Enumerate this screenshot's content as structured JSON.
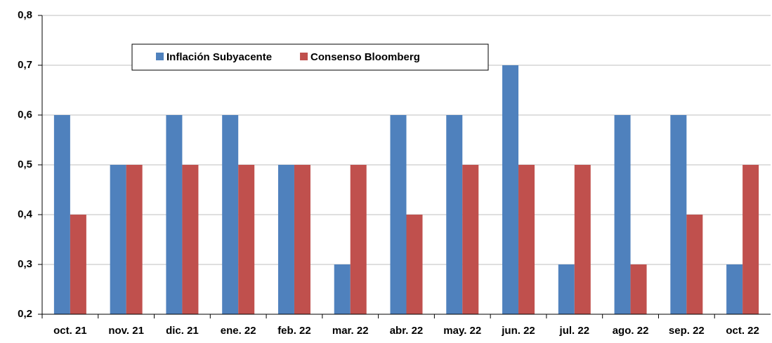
{
  "chart_data": {
    "type": "bar",
    "categories": [
      "oct. 21",
      "nov. 21",
      "dic. 21",
      "ene. 22",
      "feb. 22",
      "mar. 22",
      "abr. 22",
      "may. 22",
      "jun. 22",
      "jul. 22",
      "ago. 22",
      "sep. 22",
      "oct. 22"
    ],
    "series": [
      {
        "name": "Inflación Subyacente",
        "color": "#4f81bd",
        "values": [
          0.6,
          0.5,
          0.6,
          0.6,
          0.5,
          0.3,
          0.6,
          0.6,
          0.7,
          0.3,
          0.6,
          0.6,
          0.3
        ]
      },
      {
        "name": "Consenso Bloomberg",
        "color": "#c0504d",
        "values": [
          0.4,
          0.5,
          0.5,
          0.5,
          0.5,
          0.5,
          0.4,
          0.5,
          0.5,
          0.5,
          0.3,
          0.4,
          0.5
        ]
      }
    ],
    "ylim": [
      0.2,
      0.8
    ],
    "yticks": [
      {
        "value": 0.2,
        "label": "0,2"
      },
      {
        "value": 0.3,
        "label": "0,3"
      },
      {
        "value": 0.4,
        "label": "0,4"
      },
      {
        "value": 0.5,
        "label": "0,5"
      },
      {
        "value": 0.6,
        "label": "0,6"
      },
      {
        "value": 0.7,
        "label": "0,7"
      },
      {
        "value": 0.8,
        "label": "0,8"
      }
    ],
    "grid": true
  }
}
